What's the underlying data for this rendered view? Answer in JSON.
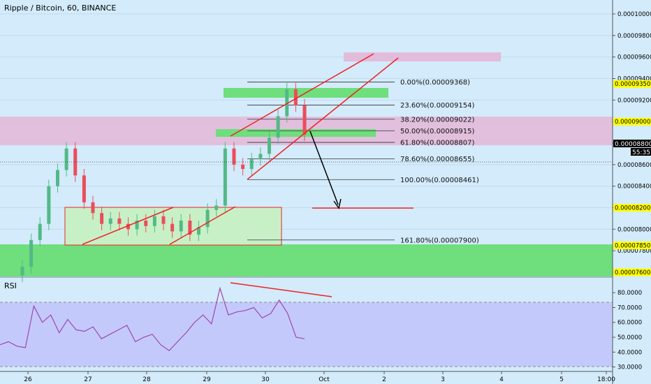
{
  "header": {
    "title": "Ripple / Bitcoin, 60, BINANCE"
  },
  "rsi_panel": {
    "label": "RSI"
  },
  "colors": {
    "background": "#d3ebfb",
    "up_candle": "#53b987",
    "down_candle": "#eb4d5c",
    "trendline": "#ef2222",
    "green_zone": "#6fde7c",
    "purple_zone": "#e3b7d7",
    "rsi_line": "#a045b2",
    "rsi_band": "#c3cafb",
    "highlight_label": "#ffff00"
  },
  "chart_data": [
    {
      "type": "candlestick",
      "title": "Ripple / Bitcoin, 60, BINANCE",
      "y_axis": {
        "ticks": [
          "0.00010000",
          "0.00009800",
          "0.00009600",
          "0.00009400",
          "0.00009200",
          "0.00009000",
          "0.00008800",
          "0.00008600",
          "0.00008400",
          "0.00008200",
          "0.00008000",
          "0.00007800",
          "0.00007600"
        ],
        "highlighted_labels": [
          "0.00009350",
          "0.00009000",
          "0.00008200",
          "0.00007850",
          "0.00007600"
        ],
        "last_price": "0.00008800",
        "countdown": "55:35",
        "ylim": [
          7.55e-05,
          0.0001013
        ]
      },
      "x_axis": {
        "ticks": [
          "26",
          "27",
          "28",
          "29",
          "30",
          "Oct",
          "2",
          "3",
          "4",
          "5",
          "18:00"
        ]
      },
      "fibonacci": [
        {
          "label": "0.00%(0.00009368)",
          "price": 9.368e-05
        },
        {
          "label": "23.60%(0.00009154)",
          "price": 9.154e-05
        },
        {
          "label": "38.20%(0.00009022)",
          "price": 9.022e-05
        },
        {
          "label": "50.00%(0.00008915)",
          "price": 8.915e-05
        },
        {
          "label": "61.80%(0.00008807)",
          "price": 8.807e-05
        },
        {
          "label": "78.60%(0.00008655)",
          "price": 8.655e-05
        },
        {
          "label": "100.00%(0.00008461)",
          "price": 8.461e-05
        },
        {
          "label": "161.80%(0.00007900)",
          "price": 7.9e-05
        }
      ],
      "candles_close": [
        7.65e-05,
        7.9e-05,
        8.05e-05,
        8.4e-05,
        8.55e-05,
        8.75e-05,
        8.5e-05,
        8.25e-05,
        8.15e-05,
        8.05e-05,
        8.1e-05,
        8.05e-05,
        8e-05,
        8.08e-05,
        8.03e-05,
        8.12e-05,
        8.05e-05,
        7.98e-05,
        8.08e-05,
        7.95e-05,
        8.02e-05,
        8.18e-05,
        8.22e-05,
        8.75e-05,
        8.6e-05,
        8.56e-05,
        8.65e-05,
        8.7e-05,
        8.85e-05,
        9.05e-05,
        9.3e-05,
        9.15e-05,
        8.88e-05
      ]
    },
    {
      "type": "line",
      "title": "RSI",
      "y_axis": {
        "ticks": [
          "80.0000",
          "70.0000",
          "60.0000",
          "50.0000",
          "40.0000",
          "30.0000"
        ],
        "ylim": [
          27,
          89
        ]
      },
      "series": [
        {
          "values": [
            45,
            47,
            44,
            43,
            71,
            60,
            65,
            53,
            62,
            55,
            54,
            57,
            49,
            52,
            55,
            58,
            47,
            50,
            52,
            45,
            41,
            47,
            53,
            60,
            65,
            59,
            83,
            65,
            67,
            68,
            70,
            63,
            66,
            75,
            66,
            50,
            49
          ]
        }
      ],
      "levels": [
        70,
        30
      ]
    }
  ]
}
